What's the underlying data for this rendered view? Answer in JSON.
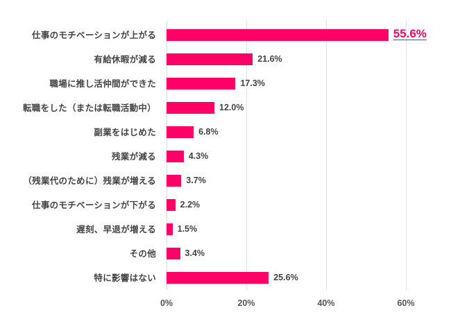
{
  "chart_data": {
    "type": "bar",
    "orientation": "horizontal",
    "title": "",
    "xlabel": "",
    "ylabel": "",
    "xlim": [
      0,
      60
    ],
    "grid": true,
    "legend": null,
    "bar_color": "#FF0066",
    "highlight_color": "#FF0066",
    "x_ticks": [
      "0%",
      "20%",
      "40%",
      "60%"
    ],
    "x_tick_values": [
      0,
      20,
      40,
      60
    ],
    "categories": [
      "仕事のモチベーションが上がる",
      "有給休暇が減る",
      "職場に推し活仲間ができた",
      "転職をした（または転職活動中）",
      "副業をはじめた",
      "残業が減る",
      "（残業代のために）残業が増える",
      "仕事のモチベーションが下がる",
      "遅刻、早退が増える",
      "その他",
      "特に影響はない"
    ],
    "values": [
      55.6,
      21.6,
      17.3,
      12.0,
      6.8,
      4.3,
      3.7,
      2.2,
      1.5,
      3.4,
      25.6
    ],
    "value_labels": [
      "55.6%",
      "21.6%",
      "17.3%",
      "12.0%",
      "6.8%",
      "4.3%",
      "3.7%",
      "2.2%",
      "1.5%",
      "3.4%",
      "25.6%"
    ],
    "highlighted_index": 0
  }
}
